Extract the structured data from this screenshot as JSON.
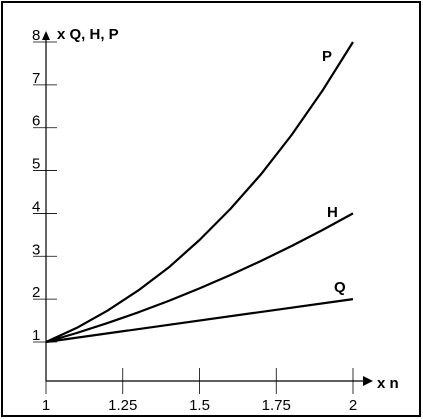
{
  "chart_data": {
    "type": "line",
    "xlabel": "x n",
    "ylabel": "x Q, H, P",
    "xlim": [
      1,
      2
    ],
    "ylim": [
      1,
      8
    ],
    "x_ticks": [
      1,
      1.25,
      1.5,
      1.75,
      2
    ],
    "x_tick_labels": [
      "1",
      "1.25",
      "1.5",
      "1.75",
      "2"
    ],
    "y_ticks": [
      1,
      2,
      3,
      4,
      5,
      6,
      7,
      8
    ],
    "y_tick_labels": [
      "1",
      "2",
      "3",
      "4",
      "5",
      "6",
      "7",
      "8"
    ],
    "grid": false,
    "series": [
      {
        "name": "P",
        "x": [
          1,
          1.1,
          1.2,
          1.3,
          1.4,
          1.5,
          1.6,
          1.7,
          1.8,
          1.9,
          2
        ],
        "values": [
          1,
          1.33,
          1.73,
          2.2,
          2.74,
          3.38,
          4.1,
          4.91,
          5.83,
          6.86,
          8
        ]
      },
      {
        "name": "H",
        "x": [
          1,
          1.1,
          1.2,
          1.3,
          1.4,
          1.5,
          1.6,
          1.7,
          1.8,
          1.9,
          2
        ],
        "values": [
          1,
          1.21,
          1.44,
          1.69,
          1.96,
          2.25,
          2.56,
          2.89,
          3.24,
          3.61,
          4
        ]
      },
      {
        "name": "Q",
        "x": [
          1,
          2
        ],
        "values": [
          1,
          2
        ]
      }
    ]
  }
}
